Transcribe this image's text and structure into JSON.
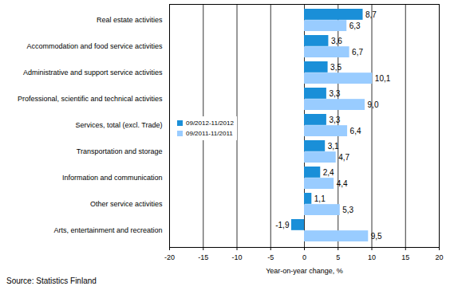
{
  "chart_data": {
    "type": "bar",
    "orientation": "horizontal",
    "categories": [
      "Real estate activities",
      "Accommodation and food service activities",
      "Administrative and support service activities",
      "Professional, scientific and technical activities",
      "Services, total (excl. Trade)",
      "Transportation and storage",
      "Information and communication",
      "Other service activities",
      "Arts, entertainment and recreation"
    ],
    "series": [
      {
        "name": "09/2012-11/2012",
        "color": "#1a8fd8",
        "values": [
          8.7,
          3.6,
          3.5,
          3.3,
          3.3,
          3.1,
          2.4,
          1.1,
          -1.9
        ],
        "value_labels": [
          "8,7",
          "3,6",
          "3,5",
          "3,3",
          "3,3",
          "3,1",
          "2,4",
          "1,1",
          "-1,9"
        ]
      },
      {
        "name": "09/2011-11/2011",
        "color": "#99ccff",
        "values": [
          6.3,
          6.7,
          10.1,
          9.0,
          6.4,
          4.7,
          4.4,
          5.3,
          9.5
        ],
        "value_labels": [
          "6,3",
          "6,7",
          "10,1",
          "9,0",
          "6,4",
          "4,7",
          "4,4",
          "5,3",
          "9,5"
        ]
      }
    ],
    "xlabel": "Year-on-year change, %",
    "xlim": [
      -20,
      20
    ],
    "xticks": [
      -20,
      -15,
      -10,
      -5,
      0,
      5,
      10,
      15,
      20
    ],
    "grid": true,
    "legend": "left",
    "data_labels": true,
    "caption": "Source: Statistics Finland"
  }
}
